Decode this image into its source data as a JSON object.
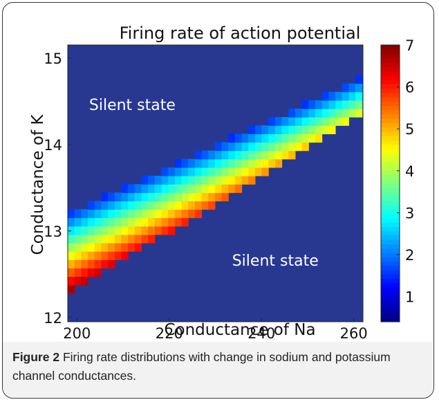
{
  "chart_data": {
    "type": "heatmap",
    "title": "Firing rate of action potential",
    "xlabel": "Conductance of Na",
    "ylabel": "Conductance of K",
    "xlim": [
      198,
      262
    ],
    "ylim": [
      11.95,
      15.15
    ],
    "x_ticks": [
      "200",
      "220",
      "240",
      "260"
    ],
    "x_tick_values": [
      200,
      220,
      240,
      260
    ],
    "y_ticks": [
      "12",
      "13",
      "14",
      "15"
    ],
    "y_tick_values": [
      12,
      13,
      14,
      15
    ],
    "colorbar": {
      "min": 0.4,
      "max": 7,
      "ticks": [
        "1",
        "2",
        "3",
        "4",
        "5",
        "6",
        "7"
      ],
      "tick_values": [
        1,
        2,
        3,
        4,
        5,
        6,
        7
      ],
      "colormap": "jet"
    },
    "background_color": "#283891",
    "annotations": [
      {
        "text": "Silent state",
        "x": 212,
        "y": 14.4
      },
      {
        "text": "Silent state",
        "x": 243,
        "y": 12.6
      }
    ],
    "grid": {
      "x_start": 198,
      "x_step": 1.45,
      "x_count": 44,
      "y_start": 12.28,
      "y_step": 0.097,
      "note": "firing band: lower boundary and upper boundary of K conductance as function of Na"
    },
    "band": {
      "lower": [
        [
          198,
          12.28
        ],
        [
          262,
          14.35
        ]
      ],
      "upper": [
        [
          198,
          13.2
        ],
        [
          262,
          14.78
        ]
      ],
      "rate_at_lower": 6.9,
      "rate_at_upper": 1.5,
      "rate_at_lower_right": 4.6
    }
  },
  "caption": {
    "label": "Figure 2",
    "text": " Firing rate distributions with change in sodium and potassium channel conductances."
  }
}
